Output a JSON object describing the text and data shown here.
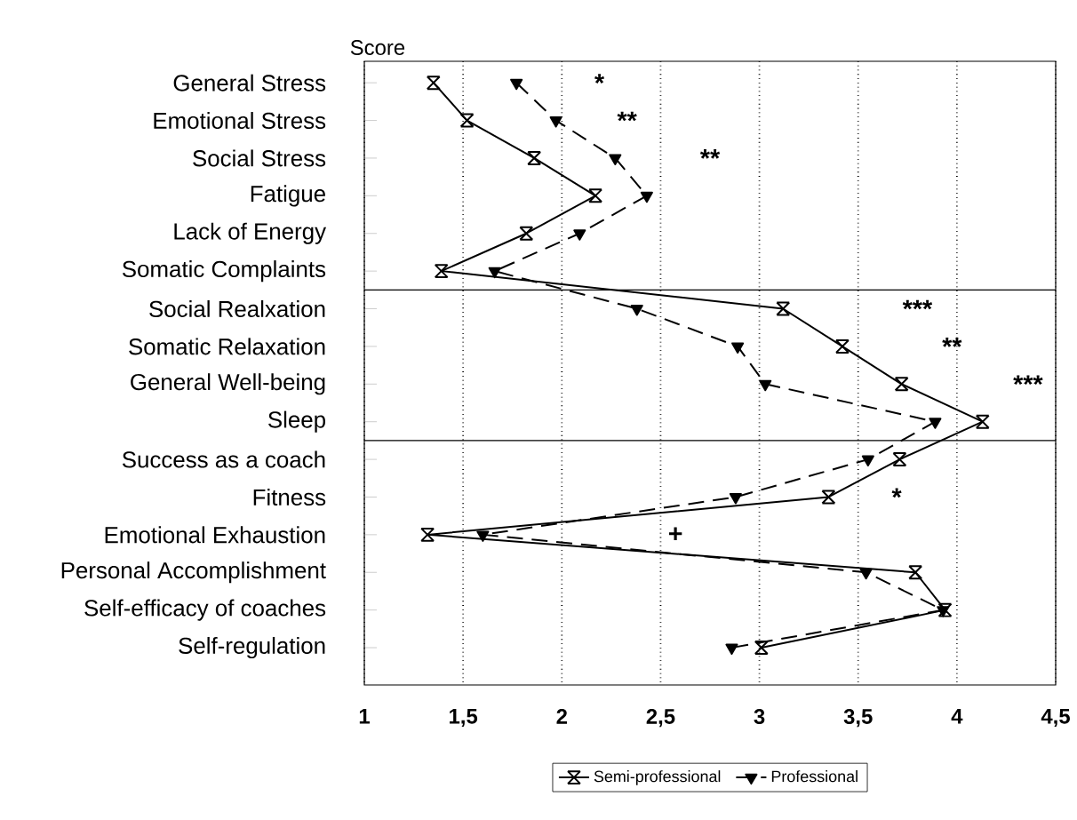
{
  "chart_data": {
    "type": "line",
    "orientation": "horizontal",
    "xlabel": "Score",
    "categories": [
      "General Stress",
      "Emotional Stress",
      "Social Stress",
      "Fatigue",
      "Lack of Energy",
      "Somatic Complaints",
      "Social Realxation",
      "Somatic Relaxation",
      "General Well-being",
      "Sleep",
      "Success as a coach",
      "Fitness",
      "Emotional Exhaustion",
      "Personal Accomplishment",
      "Self-efficacy of coaches",
      "Self-regulation"
    ],
    "series": [
      {
        "name": "Semi-professional",
        "color": "#000000",
        "marker": "cross",
        "line_style": "solid",
        "values": [
          1.35,
          1.52,
          1.86,
          2.17,
          1.82,
          1.39,
          3.12,
          3.42,
          3.72,
          4.13,
          3.71,
          3.35,
          1.32,
          3.79,
          3.94,
          3.01
        ]
      },
      {
        "name": "Professional",
        "color": "#000000",
        "marker": "triangle",
        "line_style": "dashed",
        "values": [
          1.77,
          1.97,
          2.27,
          2.43,
          2.09,
          1.66,
          2.38,
          2.89,
          3.03,
          3.89,
          3.55,
          2.88,
          1.6,
          3.54,
          3.93,
          2.86
        ]
      }
    ],
    "xlim": [
      1,
      4.5
    ],
    "xticks": [
      1,
      {
        "value": 1.5,
        "label": "1,5"
      },
      2,
      {
        "value": 2.5,
        "label": "2,5"
      },
      3,
      {
        "value": 3.5,
        "label": "3,5"
      },
      4,
      {
        "value": 4.5,
        "label": "4,5"
      }
    ],
    "grid": "x",
    "legend": "bottom",
    "annotations": [
      "*",
      "**",
      "**",
      "***",
      "**",
      "***",
      "*",
      "+"
    ]
  }
}
